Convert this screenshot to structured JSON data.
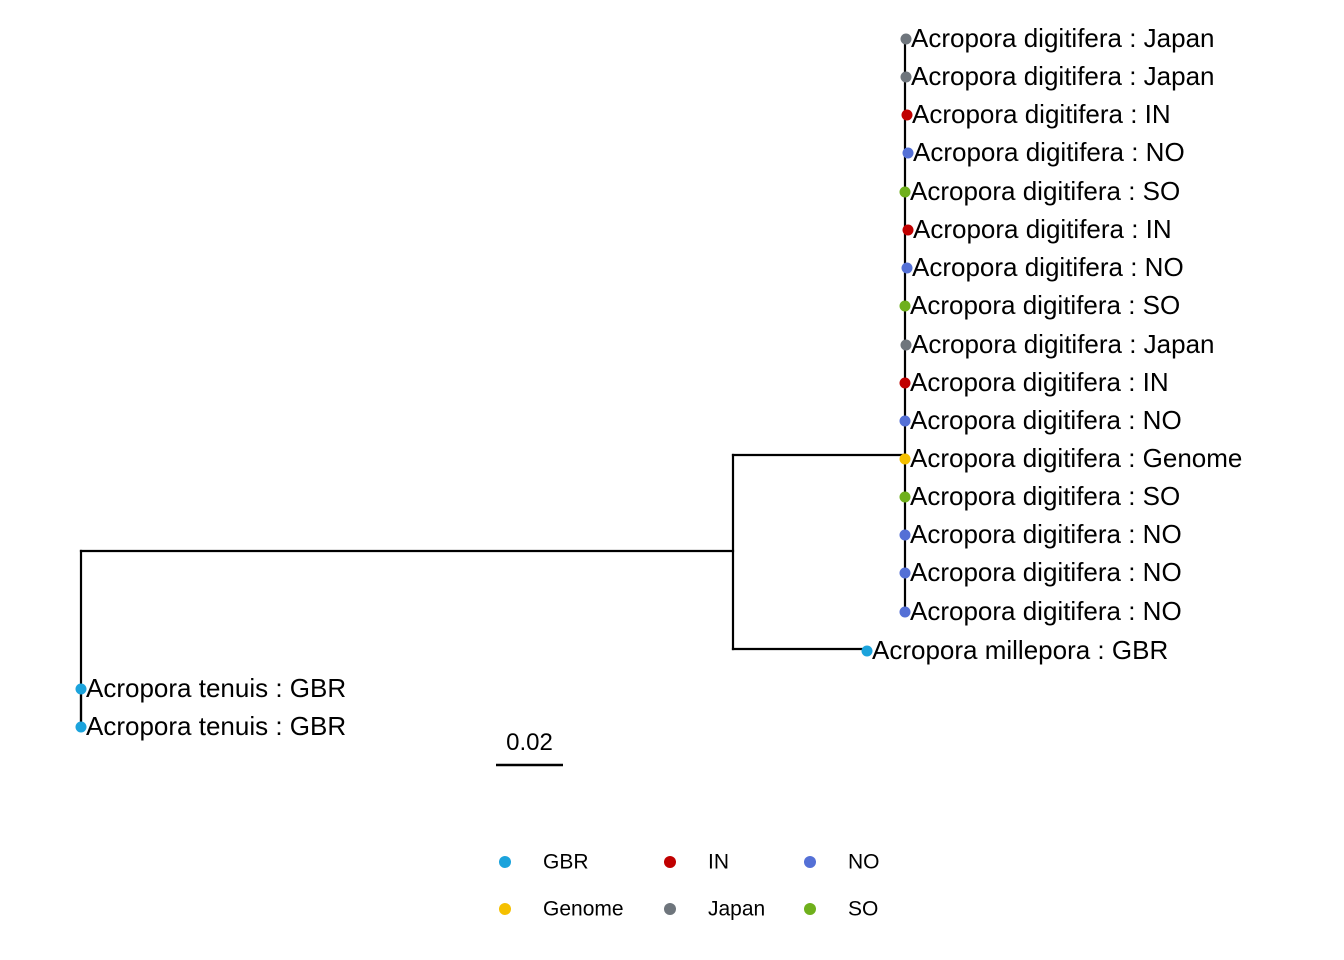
{
  "tree": {
    "tips": [
      {
        "label": "Acropora digitifera : Japan",
        "group": "Japan"
      },
      {
        "label": "Acropora digitifera : Japan",
        "group": "Japan"
      },
      {
        "label": "Acropora digitifera : IN",
        "group": "IN"
      },
      {
        "label": "Acropora digitifera : NO",
        "group": "NO"
      },
      {
        "label": "Acropora digitifera : SO",
        "group": "SO"
      },
      {
        "label": "Acropora digitifera : IN",
        "group": "IN"
      },
      {
        "label": "Acropora digitifera : NO",
        "group": "NO"
      },
      {
        "label": "Acropora digitifera : SO",
        "group": "SO"
      },
      {
        "label": "Acropora digitifera : Japan",
        "group": "Japan"
      },
      {
        "label": "Acropora digitifera : IN",
        "group": "IN"
      },
      {
        "label": "Acropora digitifera : NO",
        "group": "NO"
      },
      {
        "label": "Acropora digitifera : Genome",
        "group": "Genome"
      },
      {
        "label": "Acropora digitifera : SO",
        "group": "SO"
      },
      {
        "label": "Acropora digitifera : NO",
        "group": "NO"
      },
      {
        "label": "Acropora digitifera : NO",
        "group": "NO"
      },
      {
        "label": "Acropora digitifera : NO",
        "group": "NO"
      },
      {
        "label": "Acropora millepora : GBR",
        "group": "GBR"
      },
      {
        "label": "Acropora tenuis : GBR",
        "group": "GBR"
      },
      {
        "label": "Acropora tenuis : GBR",
        "group": "GBR"
      }
    ],
    "scale_bar": {
      "label": "0.02",
      "length": 0.02
    }
  },
  "legend": {
    "items": [
      {
        "label": "GBR",
        "color": "#1ba3dc"
      },
      {
        "label": "IN",
        "color": "#c00000"
      },
      {
        "label": "NO",
        "color": "#5470d6"
      },
      {
        "label": "Genome",
        "color": "#f5c000"
      },
      {
        "label": "Japan",
        "color": "#6e757c"
      },
      {
        "label": "SO",
        "color": "#6fb01c"
      }
    ]
  },
  "group_colors": {
    "GBR": "#1ba3dc",
    "IN": "#c00000",
    "NO": "#5470d6",
    "Genome": "#f5c000",
    "Japan": "#6e757c",
    "SO": "#6fb01c"
  }
}
